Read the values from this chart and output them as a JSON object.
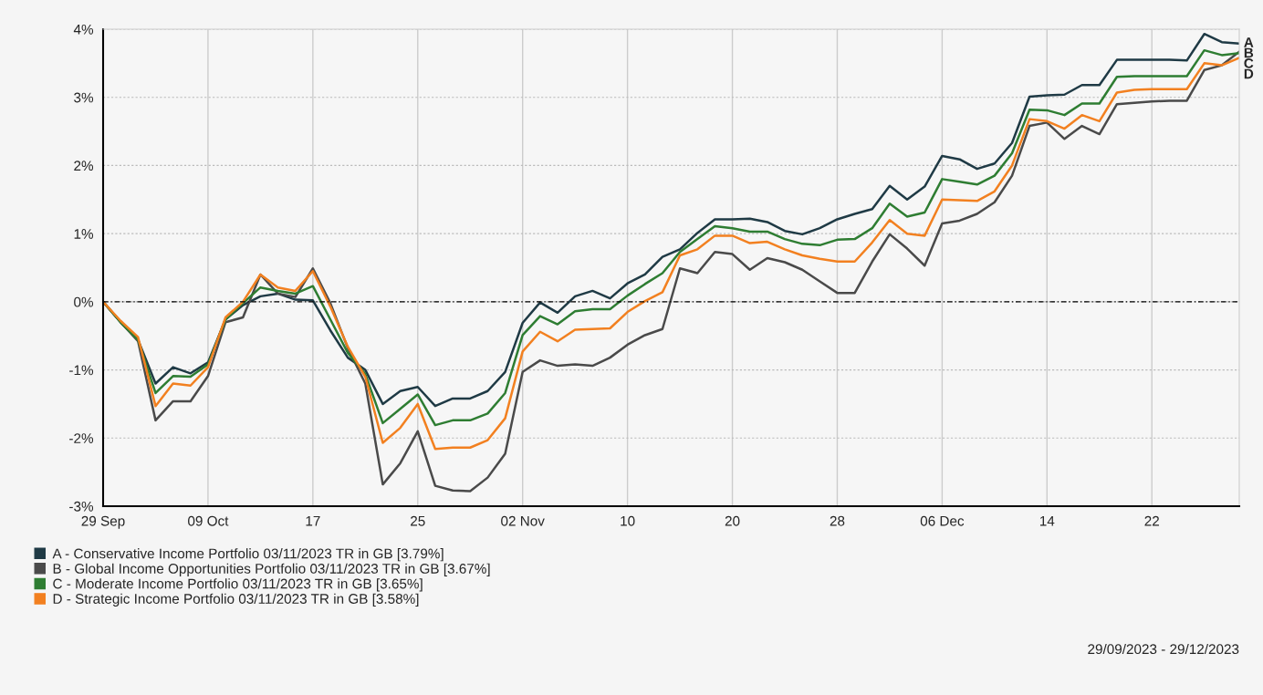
{
  "chart_data": {
    "type": "line",
    "categories": [
      "29 Sep",
      null,
      null,
      null,
      null,
      null,
      "09 Oct",
      null,
      null,
      null,
      null,
      null,
      "17",
      null,
      null,
      null,
      null,
      null,
      "25",
      null,
      null,
      null,
      null,
      null,
      "02 Nov",
      null,
      null,
      null,
      null,
      null,
      "10",
      null,
      null,
      null,
      null,
      null,
      "20",
      null,
      null,
      null,
      null,
      null,
      "28",
      null,
      null,
      null,
      null,
      null,
      "06 Dec",
      null,
      null,
      null,
      null,
      null,
      "14",
      null,
      null,
      null,
      null,
      null,
      "22",
      null,
      null,
      null,
      null,
      null
    ],
    "series": [
      {
        "name": "A - Conservative Income Portfolio 03/11/2023 TR in GB [3.79%]",
        "color": "#1f3a45",
        "values": [
          0,
          -0.3,
          -0.56,
          -1.2,
          -0.96,
          -1.05,
          -0.89,
          -0.26,
          -0.05,
          0.08,
          0.12,
          0.03,
          0.02,
          -0.42,
          -0.82,
          -1.0,
          -1.5,
          -1.31,
          -1.25,
          -1.53,
          -1.42,
          -1.42,
          -1.31,
          -1.03,
          -0.31,
          -0.01,
          -0.16,
          0.08,
          0.16,
          0.05,
          0.27,
          0.4,
          0.66,
          0.77,
          1.01,
          1.21,
          1.21,
          1.22,
          1.17,
          1.04,
          0.99,
          1.08,
          1.21,
          1.29,
          1.36,
          1.7,
          1.5,
          1.69,
          2.14,
          2.09,
          1.95,
          2.03,
          2.33,
          3.01,
          3.03,
          3.04,
          3.18,
          3.18,
          3.55,
          3.55,
          3.55,
          3.55,
          3.54,
          3.93,
          3.81,
          3.79
        ]
      },
      {
        "name": "B - Global Income Opportunities Portfolio 03/11/2023 TR in GB [3.67%]",
        "color": "#4a4a4a",
        "values": [
          0,
          -0.3,
          -0.58,
          -1.74,
          -1.46,
          -1.46,
          -1.09,
          -0.3,
          -0.23,
          0.4,
          0.12,
          0.07,
          0.49,
          -0.02,
          -0.68,
          -1.2,
          -2.68,
          -2.37,
          -1.9,
          -2.7,
          -2.77,
          -2.78,
          -2.58,
          -2.23,
          -1.03,
          -0.86,
          -0.94,
          -0.92,
          -0.94,
          -0.82,
          -0.63,
          -0.49,
          -0.4,
          0.49,
          0.42,
          0.73,
          0.7,
          0.47,
          0.64,
          0.58,
          0.47,
          0.3,
          0.13,
          0.13,
          0.59,
          0.99,
          0.78,
          0.53,
          1.15,
          1.19,
          1.29,
          1.46,
          1.85,
          2.58,
          2.63,
          2.39,
          2.58,
          2.46,
          2.9,
          2.92,
          2.94,
          2.95,
          2.95,
          3.4,
          3.47,
          3.67
        ]
      },
      {
        "name": "C - Moderate Income Portfolio 03/11/2023 TR in GB [3.65%]",
        "color": "#2e7d32",
        "values": [
          0,
          -0.3,
          -0.56,
          -1.34,
          -1.09,
          -1.1,
          -0.92,
          -0.26,
          -0.02,
          0.21,
          0.16,
          0.12,
          0.23,
          -0.26,
          -0.75,
          -1.06,
          -1.78,
          -1.57,
          -1.36,
          -1.81,
          -1.74,
          -1.74,
          -1.64,
          -1.34,
          -0.49,
          -0.21,
          -0.33,
          -0.14,
          -0.11,
          -0.11,
          0.09,
          0.26,
          0.42,
          0.73,
          0.92,
          1.11,
          1.08,
          1.03,
          1.03,
          0.92,
          0.85,
          0.83,
          0.91,
          0.92,
          1.08,
          1.44,
          1.25,
          1.31,
          1.8,
          1.76,
          1.72,
          1.85,
          2.18,
          2.82,
          2.81,
          2.74,
          2.91,
          2.91,
          3.3,
          3.31,
          3.31,
          3.31,
          3.31,
          3.69,
          3.62,
          3.65
        ]
      },
      {
        "name": "D - Strategic Income Portfolio 03/11/2023 TR in GB [3.58%]",
        "color": "#f28020",
        "values": [
          0,
          -0.28,
          -0.52,
          -1.53,
          -1.2,
          -1.23,
          -0.96,
          -0.23,
          0,
          0.4,
          0.21,
          0.16,
          0.45,
          -0.07,
          -0.66,
          -1.1,
          -2.07,
          -1.85,
          -1.5,
          -2.16,
          -2.14,
          -2.14,
          -2.03,
          -1.71,
          -0.73,
          -0.44,
          -0.58,
          -0.41,
          -0.4,
          -0.39,
          -0.15,
          0.01,
          0.14,
          0.68,
          0.77,
          0.97,
          0.97,
          0.86,
          0.88,
          0.77,
          0.68,
          0.63,
          0.59,
          0.59,
          0.87,
          1.2,
          1.0,
          0.97,
          1.5,
          1.49,
          1.48,
          1.62,
          2.0,
          2.68,
          2.65,
          2.54,
          2.74,
          2.65,
          3.07,
          3.11,
          3.12,
          3.12,
          3.12,
          3.5,
          3.47,
          3.58
        ]
      }
    ],
    "ylim": [
      -3,
      4
    ],
    "yticks": [
      {
        "value": -3,
        "label": "-3%"
      },
      {
        "value": -2,
        "label": "-2%"
      },
      {
        "value": -1,
        "label": "-1%"
      },
      {
        "value": 0,
        "label": "0%"
      },
      {
        "value": 1,
        "label": "1%"
      },
      {
        "value": 2,
        "label": "2%"
      },
      {
        "value": 3,
        "label": "3%"
      },
      {
        "value": 4,
        "label": "4%"
      }
    ],
    "ref_lines": [
      {
        "axis": "y",
        "value": 0,
        "color": "#000000",
        "line_style": "dotted"
      }
    ],
    "annotations": [
      "A",
      "B",
      "C",
      "D",
      "29/09/2023 - 29/12/2023"
    ],
    "grid": true,
    "legend": "bottom",
    "marker": "none",
    "line_style": "solid"
  }
}
